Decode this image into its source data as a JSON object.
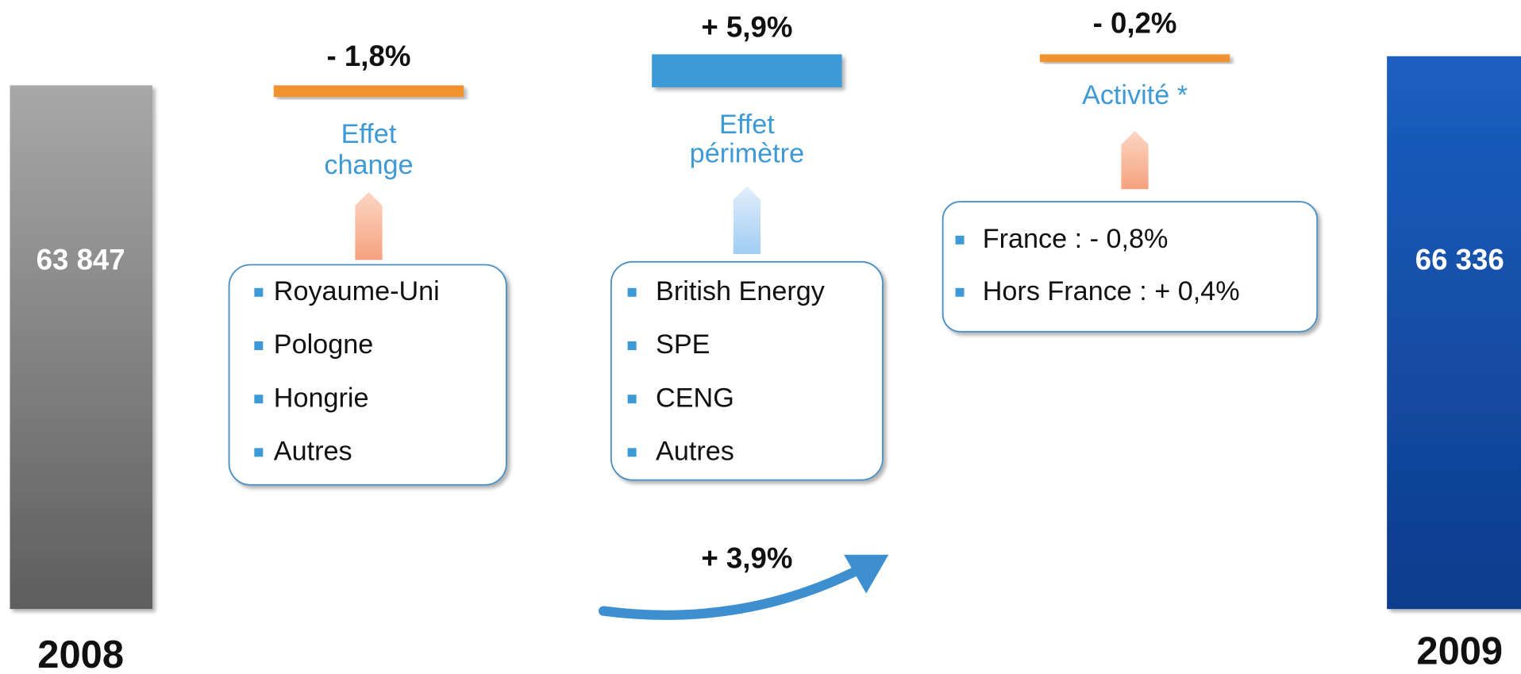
{
  "start": {
    "value": "63 847",
    "year": "2008"
  },
  "end": {
    "value": "66 336",
    "year": "2009"
  },
  "effects": [
    {
      "value": "- 1,8%",
      "label": [
        "Effet",
        "change"
      ],
      "items": [
        "Royaume-Uni",
        "Pologne",
        "Hongrie",
        "Autres"
      ]
    },
    {
      "value": "+ 5,9%",
      "label": [
        "Effet",
        "périmètre"
      ],
      "items": [
        "British Energy",
        "SPE",
        "CENG",
        "Autres"
      ]
    },
    {
      "value": "- 0,2%",
      "label": [
        "Activité *"
      ],
      "items": [
        "France : - 0,8%",
        "Hors France : + 0,4%"
      ]
    }
  ],
  "total_change": "+ 3,9%"
}
